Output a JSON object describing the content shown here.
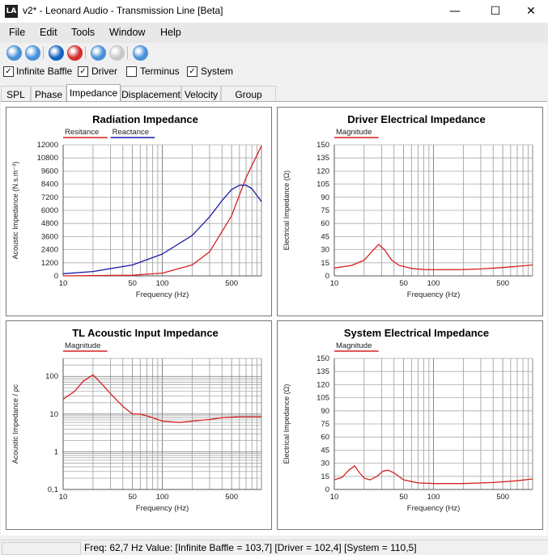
{
  "window": {
    "icon_text": "LA",
    "title": "v2* - Leonard Audio - Transmission Line [Beta]",
    "minimize": "—",
    "maximize": "☐",
    "close": "✕"
  },
  "menu": [
    "File",
    "Edit",
    "Tools",
    "Window",
    "Help"
  ],
  "toolbar": [
    {
      "name": "new-icon",
      "color": "#4a90d9"
    },
    {
      "name": "open-icon",
      "color": "#4a90d9"
    },
    {
      "name": "record-blue-icon",
      "color": "#1565c0"
    },
    {
      "name": "record-red-icon",
      "color": "#d32f2f"
    },
    {
      "name": "previous-icon",
      "color": "#4a90d9"
    },
    {
      "name": "pause-icon",
      "color": "#c8c8c8"
    },
    {
      "name": "next-icon",
      "color": "#4a90d9"
    }
  ],
  "checks": [
    {
      "label": "Infinite Baffle",
      "checked": true
    },
    {
      "label": "Driver",
      "checked": true
    },
    {
      "label": "Terminus",
      "checked": false
    },
    {
      "label": "System",
      "checked": true
    }
  ],
  "tabs": [
    "SPL",
    "Phase",
    "Impedance",
    "Displacement",
    "Velocity",
    "Group Delay"
  ],
  "active_tab": "Impedance",
  "chart_data": [
    {
      "type": "line",
      "title": "Radiation Impedance",
      "xlabel": "Frequency (Hz)",
      "ylabel": "Acoustic Impedance (N.s.m⁻³)",
      "xscale": "log",
      "xlim": [
        10,
        1000
      ],
      "ylim": [
        0,
        12000
      ],
      "yticks": [
        "0",
        "1200",
        "2400",
        "3600",
        "4800",
        "6000",
        "7200",
        "8400",
        "9600",
        "10800",
        "12000"
      ],
      "xticks": [
        "10",
        "50",
        "100",
        "500"
      ],
      "legend": "top-left",
      "series": [
        {
          "name": "Resitance",
          "color": "#d62020",
          "x": [
            10,
            50,
            100,
            200,
            300,
            500,
            700,
            1000
          ],
          "y": [
            0,
            60,
            250,
            1000,
            2200,
            5500,
            9000,
            11900
          ]
        },
        {
          "name": "Reactance",
          "color": "#1a1aa8",
          "x": [
            10,
            20,
            50,
            100,
            200,
            300,
            400,
            500,
            600,
            700,
            800,
            1000
          ],
          "y": [
            200,
            400,
            1000,
            2000,
            3700,
            5400,
            6900,
            7900,
            8300,
            8300,
            8000,
            6800
          ]
        }
      ]
    },
    {
      "type": "line",
      "title": "Driver Electrical Impedance",
      "xlabel": "Frequency (Hz)",
      "ylabel": "Electrical Impedance (Ω)",
      "xscale": "log",
      "xlim": [
        10,
        1000
      ],
      "ylim": [
        0,
        150
      ],
      "yticks": [
        "0",
        "15",
        "30",
        "45",
        "60",
        "75",
        "90",
        "105",
        "120",
        "135",
        "150"
      ],
      "xticks": [
        "10",
        "50",
        "100",
        "500"
      ],
      "legend": "top-left",
      "series": [
        {
          "name": "Magnitude",
          "color": "#d62020",
          "x": [
            10,
            15,
            20,
            25,
            28,
            32,
            38,
            45,
            60,
            80,
            100,
            200,
            300,
            500,
            800,
            1000
          ],
          "y": [
            9,
            12,
            18,
            30,
            36,
            30,
            18,
            12,
            8.5,
            7.2,
            7,
            7.2,
            8,
            9.5,
            11.5,
            12.5
          ]
        }
      ]
    },
    {
      "type": "line",
      "title": "TL Acoustic Input Impedance",
      "xlabel": "Frequency (Hz)",
      "ylabel": "Acoustic Impedance / ρc",
      "xscale": "log",
      "xlim": [
        10,
        1000
      ],
      "yscale": "log",
      "ylim": [
        0.1,
        300
      ],
      "yticks": [
        "0,1",
        "1",
        "10",
        "100"
      ],
      "xticks": [
        "10",
        "50",
        "100",
        "500"
      ],
      "legend": "top-left",
      "series": [
        {
          "name": "Magnitude",
          "color": "#d62020",
          "x": [
            10,
            13,
            16,
            20,
            25,
            30,
            40,
            50,
            60,
            80,
            100,
            150,
            200,
            300,
            400,
            600,
            800,
            1000
          ],
          "y": [
            25,
            40,
            75,
            110,
            60,
            35,
            16,
            10,
            10,
            8,
            6.5,
            6,
            6.5,
            7.2,
            8,
            8.5,
            8.5,
            8.5
          ]
        }
      ]
    },
    {
      "type": "line",
      "title": "System Electrical Impedance",
      "xlabel": "Frequency (Hz)",
      "ylabel": "Electrical Impedance (Ω)",
      "xscale": "log",
      "xlim": [
        10,
        1000
      ],
      "ylim": [
        0,
        150
      ],
      "yticks": [
        "0",
        "15",
        "30",
        "45",
        "60",
        "75",
        "90",
        "105",
        "120",
        "135",
        "150"
      ],
      "xticks": [
        "10",
        "50",
        "100",
        "500"
      ],
      "legend": "top-left",
      "series": [
        {
          "name": "Magnitude",
          "color": "#d62020",
          "x": [
            10,
            12,
            14,
            16,
            18,
            20,
            23,
            27,
            31,
            35,
            40,
            50,
            70,
            100,
            200,
            400,
            700,
            1000
          ],
          "y": [
            11,
            14,
            22,
            27,
            19,
            13,
            11,
            15,
            21,
            22,
            19,
            11,
            7.5,
            6.8,
            6.8,
            8,
            10,
            12
          ]
        }
      ]
    }
  ],
  "status": {
    "text": "Freq: 62,7 Hz   Value: [Infinite Baffle = 103,7]   [Driver = 102,4]   [System = 110,5]"
  }
}
